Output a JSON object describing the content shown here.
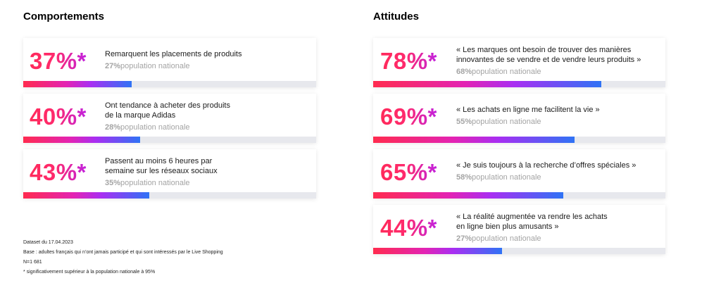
{
  "comportements": {
    "title": "Comportements",
    "items": [
      {
        "value": "37%*",
        "fraction": 0.37,
        "statement": [
          "Remarquent les placements de produits"
        ],
        "national_value": "27%",
        "national_label": "population nationale"
      },
      {
        "value": "40%*",
        "fraction": 0.4,
        "statement": [
          "Ont tendance à acheter des produits",
          "de la marque Adidas"
        ],
        "national_value": "28%",
        "national_label": "population nationale"
      },
      {
        "value": "43%*",
        "fraction": 0.43,
        "statement": [
          "Passent au moins 6 heures par",
          "semaine sur les réseaux sociaux"
        ],
        "national_value": "35%",
        "national_label": "population nationale"
      }
    ]
  },
  "attitudes": {
    "title": "Attitudes",
    "items": [
      {
        "value": "78%*",
        "fraction": 0.78,
        "statement": [
          "« Les marques ont besoin de trouver des manières",
          "innovantes de se vendre et de vendre leurs produits »"
        ],
        "national_value": "68%",
        "national_label": "population nationale"
      },
      {
        "value": "69%*",
        "fraction": 0.69,
        "statement": [
          "« Les achats en ligne me facilitent la vie »"
        ],
        "national_value": "55%",
        "national_label": "population nationale"
      },
      {
        "value": "65%*",
        "fraction": 0.65,
        "statement": [
          "« Je suis toujours à la recherche d’offres spéciales »"
        ],
        "national_value": "58%",
        "national_label": "population nationale"
      },
      {
        "value": "44%*",
        "fraction": 0.44,
        "statement": [
          "« La réalité augmentée va rendre les achats",
          "en ligne bien plus amusants »"
        ],
        "national_value": "27%",
        "national_label": "population nationale"
      }
    ]
  },
  "footnotes": [
    "Dataset du 17.04.2023",
    "Base : adultes français qui n’ont jamais participé et qui sont intéressés par le Live Shopping",
    "N=1 681",
    "* significativement supérieur à la population nationale à 95%"
  ],
  "colors": {
    "value_gradient": [
      "#ff2a5a",
      "#c020e0"
    ],
    "bar_gradient": [
      "#ff2b4f",
      "#e323b3",
      "#a82ef2",
      "#2f73f5"
    ],
    "bar_track": "#e7e8ed"
  },
  "chart_data": [
    {
      "type": "bar",
      "title": "Comportements",
      "categories": [
        "Remarquent les placements de produits",
        "Ont tendance à acheter des produits de la marque Adidas",
        "Passent au moins 6 heures par semaine sur les réseaux sociaux"
      ],
      "series": [
        {
          "values": [
            37,
            40,
            43
          ]
        },
        {
          "name": "population nationale",
          "values": [
            27,
            28,
            35
          ]
        }
      ],
      "ylim": [
        0,
        100
      ]
    },
    {
      "type": "bar",
      "title": "Attitudes",
      "categories": [
        "« Les marques ont besoin de trouver des manières innovantes de se vendre et de vendre leurs produits »",
        "« Les achats en ligne me facilitent la vie »",
        "« Je suis toujours à la recherche d’offres spéciales »",
        "« La réalité augmentée va rendre les achats en ligne bien plus amusants »"
      ],
      "series": [
        {
          "values": [
            78,
            69,
            65,
            44
          ]
        },
        {
          "name": "population nationale",
          "values": [
            68,
            55,
            58,
            27
          ]
        }
      ],
      "ylim": [
        0,
        100
      ]
    }
  ]
}
